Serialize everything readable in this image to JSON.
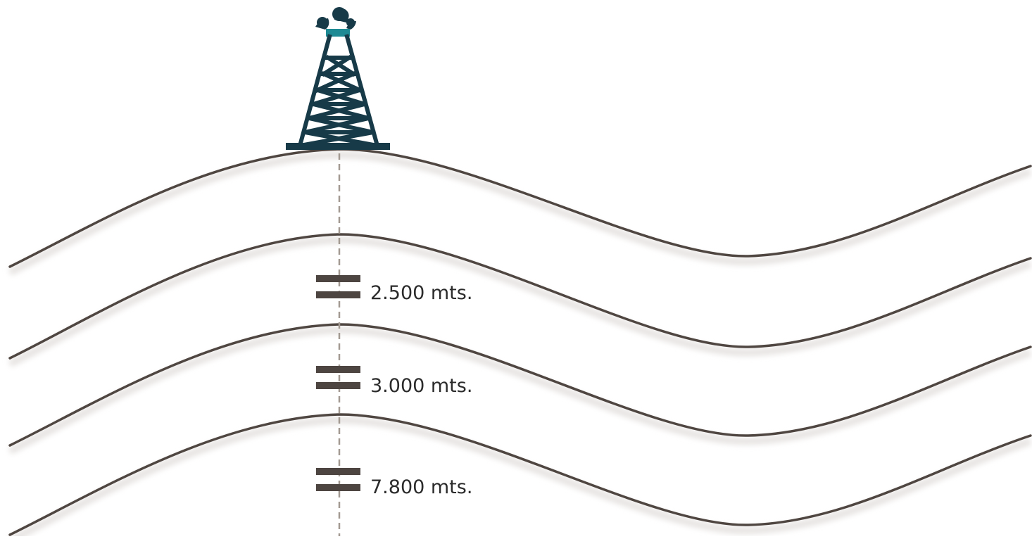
{
  "diagram": {
    "colors": {
      "background": "#ffffff",
      "strata_line": "#4f4641",
      "strata_shadow": "#e6e3e1",
      "borehole": "#a39a92",
      "marker": "#4d4541",
      "derrick": "#173a48",
      "derrick_cap": "#1e8a94",
      "label": "#2b2b2b"
    },
    "derrick": {
      "icon": "oil-derrick-gushing-icon"
    },
    "depth_markers": [
      {
        "label": "2.500 mts.",
        "icon": "casing-marker-icon"
      },
      {
        "label": "3.000 mts.",
        "icon": "casing-marker-icon"
      },
      {
        "label": "7.800 mts.",
        "icon": "casing-marker-icon"
      }
    ],
    "strata_count": 4
  }
}
